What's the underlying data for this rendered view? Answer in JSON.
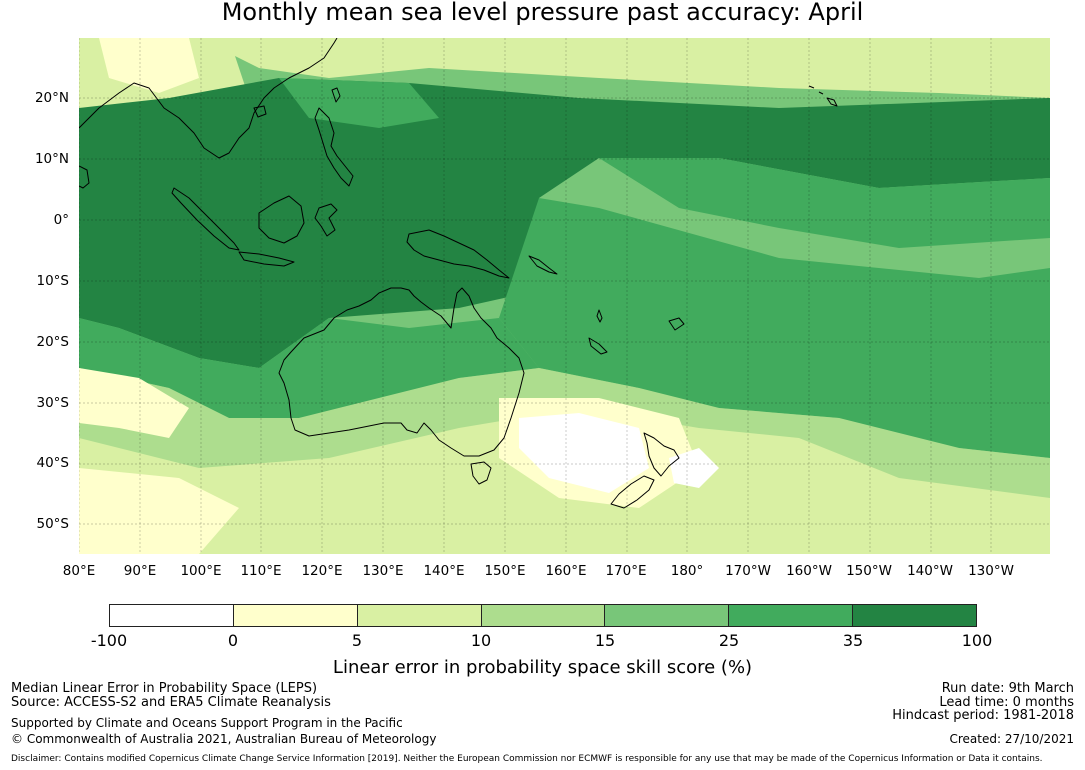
{
  "title": "Monthly mean sea level pressure past accuracy: April",
  "map": {
    "lat_labels": [
      "20°N",
      "10°N",
      "0°",
      "10°S",
      "20°S",
      "30°S",
      "40°S",
      "50°S"
    ],
    "lon_labels": [
      "80°E",
      "90°E",
      "100°E",
      "110°E",
      "120°E",
      "130°E",
      "140°E",
      "150°E",
      "160°E",
      "170°E",
      "180°",
      "170°W",
      "160°W",
      "150°W",
      "140°W",
      "130°W"
    ],
    "colors": [
      "#ffffff",
      "#ffffcc",
      "#d9f0a3",
      "#addd8e",
      "#78c679",
      "#41ab5d",
      "#238443"
    ]
  },
  "colorbar": {
    "ticks": [
      "-100",
      "0",
      "5",
      "10",
      "15",
      "25",
      "35",
      "100"
    ],
    "label": "Linear error in probability space skill score (%)"
  },
  "info": {
    "left_line1": "Median Linear Error in Probability Space (LEPS)",
    "left_line2": "Source: ACCESS-S2 and ERA5 Climate Reanalysis",
    "left_line3": "Supported by Climate and Oceans Support Program in the Pacific",
    "left_line4": "© Commonwealth of Australia 2021, Australian Bureau of Meteorology",
    "right_line1": "Run date: 9th March",
    "right_line2": "Lead time: 0 months",
    "right_line3": "Hindcast period: 1981-2018",
    "right_line4": "Created: 27/10/2021",
    "disclaimer": "Disclaimer: Contains modified Copernicus Climate Change Service Information [2019]. Neither the European Commission nor ECMWF is responsible for any use that may be made of the Copernicus Information or Data it contains."
  }
}
